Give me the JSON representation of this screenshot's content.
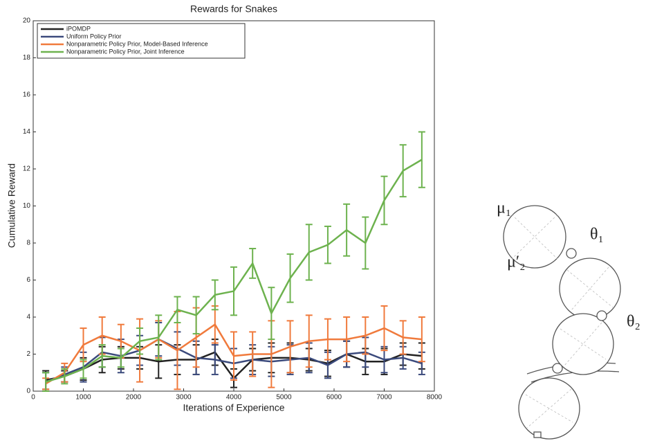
{
  "chart_data": {
    "type": "line",
    "title": "Rewards for Snakes",
    "xlabel": "Iterations of Experience",
    "ylabel": "Cumulative Reward",
    "x": [
      250,
      625,
      1000,
      1375,
      1750,
      2125,
      2500,
      2875,
      3250,
      3625,
      4000,
      4375,
      4750,
      5125,
      5500,
      5875,
      6250,
      6625,
      7000,
      7375,
      7750
    ],
    "series": [
      {
        "name": "iPOMDP",
        "color": "#222222",
        "values": [
          0.6,
          0.8,
          1.2,
          1.7,
          1.8,
          1.8,
          1.6,
          1.7,
          1.7,
          2.1,
          0.7,
          1.7,
          1.8,
          1.8,
          1.7,
          1.5,
          2.0,
          1.6,
          1.6,
          2.0,
          1.9
        ],
        "errors": [
          0.5,
          0.3,
          0.6,
          0.7,
          0.6,
          0.6,
          0.9,
          0.8,
          0.8,
          0.7,
          0.5,
          0.6,
          0.8,
          0.8,
          0.6,
          0.7,
          0.7,
          0.7,
          0.7,
          0.6,
          0.7
        ]
      },
      {
        "name": "Uniform Policy Prior",
        "color": "#3b4a7c",
        "values": [
          0.5,
          0.9,
          1.3,
          2.1,
          1.9,
          2.2,
          2.8,
          2.3,
          1.8,
          1.7,
          1.5,
          1.7,
          1.6,
          1.7,
          1.8,
          1.4,
          2.0,
          2.1,
          1.7,
          1.8,
          1.5
        ],
        "errors": [
          0.5,
          0.4,
          0.8,
          0.8,
          0.9,
          0.8,
          0.9,
          0.9,
          0.9,
          0.8,
          0.8,
          0.8,
          0.8,
          0.8,
          0.8,
          0.7,
          0.7,
          0.8,
          0.7,
          0.6,
          0.6
        ]
      },
      {
        "name": "Nonparametric Policy Prior, Model-Based Inference",
        "color": "#f07a3c",
        "values": [
          0.4,
          1.0,
          2.5,
          3.0,
          2.7,
          2.2,
          2.8,
          2.2,
          2.9,
          3.6,
          1.9,
          2.0,
          2.0,
          2.4,
          2.7,
          2.8,
          2.8,
          3.0,
          3.4,
          2.9,
          2.8
        ],
        "errors": [
          0.3,
          0.5,
          0.9,
          1.0,
          0.9,
          1.7,
          1.0,
          2.1,
          1.6,
          1.0,
          1.3,
          1.2,
          1.8,
          1.4,
          1.4,
          1.1,
          1.2,
          1.0,
          1.2,
          0.9,
          1.2
        ]
      },
      {
        "name": "Nonparametric Policy Prior, Joint Inference",
        "color": "#6db24e",
        "values": [
          0.5,
          0.8,
          1.2,
          1.9,
          1.8,
          2.7,
          2.9,
          4.4,
          4.1,
          5.2,
          5.4,
          6.9,
          4.2,
          6.1,
          7.5,
          7.9,
          8.7,
          8.0,
          10.3,
          11.9,
          12.5
        ],
        "errors": [
          0.5,
          0.4,
          0.5,
          0.6,
          0.5,
          0.7,
          1.2,
          0.7,
          1.0,
          0.8,
          1.3,
          0.8,
          1.4,
          1.3,
          1.5,
          1.0,
          1.4,
          1.4,
          1.3,
          1.4,
          1.5
        ]
      }
    ],
    "xlim": [
      0,
      8000
    ],
    "xticks": [
      0,
      1000,
      2000,
      3000,
      4000,
      5000,
      6000,
      7000,
      8000
    ],
    "ylim": [
      0,
      20
    ],
    "yticks": [
      0,
      2,
      4,
      6,
      8,
      10,
      12,
      14,
      16,
      18,
      20
    ],
    "legend": "upper-left"
  },
  "diagram": {
    "labels": [
      "μ₁",
      "θ₁",
      "μ′₂",
      "θ₂"
    ]
  }
}
